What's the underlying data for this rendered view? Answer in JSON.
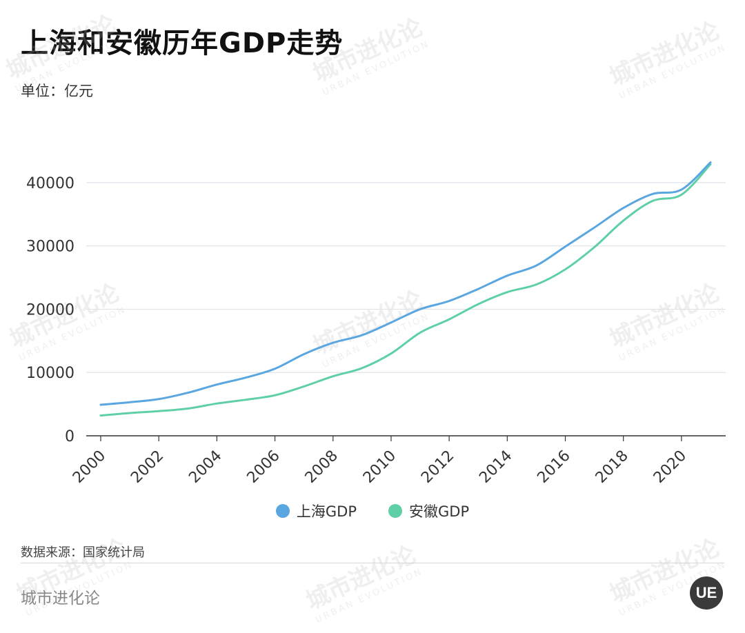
{
  "header": {
    "title": "上海和安徽历年GDP走势",
    "unit": "单位：亿元"
  },
  "footer": {
    "source": "数据来源：国家统计局",
    "brand": "城市进化论",
    "logo_text": "UE"
  },
  "watermark": {
    "text": "城市进化论",
    "subtext": "URBAN EVOLUTION"
  },
  "colors": {
    "shanghai": "#5aa6e0",
    "anhui": "#5fd0a6",
    "grid": "#dfe3e8",
    "axis": "#333333"
  },
  "chart_data": {
    "type": "line",
    "title": "上海和安徽历年GDP走势",
    "ylabel": "单位：亿元",
    "xlabel": "",
    "x": [
      2000,
      2001,
      2002,
      2003,
      2004,
      2005,
      2006,
      2007,
      2008,
      2009,
      2010,
      2011,
      2012,
      2013,
      2014,
      2015,
      2016,
      2017,
      2018,
      2019,
      2020,
      2021
    ],
    "xticks": [
      "2000",
      "2002",
      "2004",
      "2006",
      "2008",
      "2010",
      "2012",
      "2014",
      "2016",
      "2018",
      "2020"
    ],
    "yticks": [
      "0",
      "10000",
      "20000",
      "30000",
      "40000"
    ],
    "ylim": [
      0,
      45000
    ],
    "grid": true,
    "legend": "bottom-center",
    "series": [
      {
        "name": "上海GDP",
        "color": "#5aa6e0",
        "values": [
          4900,
          5300,
          5800,
          6800,
          8100,
          9200,
          10600,
          12900,
          14700,
          15900,
          17900,
          20000,
          21300,
          23200,
          25300,
          26900,
          29900,
          32900,
          36000,
          38200,
          38900,
          43200
        ]
      },
      {
        "name": "安徽GDP",
        "color": "#5fd0a6",
        "values": [
          3200,
          3600,
          3900,
          4300,
          5100,
          5700,
          6400,
          7800,
          9400,
          10700,
          13000,
          16300,
          18400,
          20800,
          22700,
          23900,
          26300,
          29800,
          34000,
          37100,
          38100,
          42900
        ]
      }
    ]
  }
}
